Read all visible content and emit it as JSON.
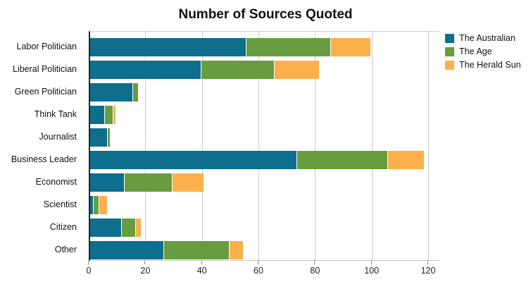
{
  "title": "Number of Sources Quoted",
  "chart_data": {
    "type": "bar",
    "stacked": true,
    "orientation": "horizontal",
    "title": "Number of Sources Quoted",
    "categories": [
      "Labor Politician",
      "Liberal Politician",
      "Green Politician",
      "Think Tank",
      "Journalist",
      "Business Leader",
      "Economist",
      "Scientist",
      "Citizen",
      "Other"
    ],
    "series": [
      {
        "name": "The Australian",
        "color": "#0d6e8d",
        "values": [
          55,
          39,
          15,
          5,
          6,
          73,
          12,
          1,
          11,
          26
        ]
      },
      {
        "name": "The Age",
        "color": "#689c40",
        "values": [
          30,
          26,
          2,
          3,
          1,
          32,
          17,
          2,
          5,
          23
        ]
      },
      {
        "name": "The Herald Sun",
        "color": "#fbb04c",
        "values": [
          14,
          16,
          0,
          1,
          0,
          13,
          11,
          3,
          2,
          5
        ]
      }
    ],
    "x_ticks": [
      0,
      20,
      40,
      60,
      80,
      100,
      120
    ],
    "xlim": [
      0,
      124
    ],
    "grid": true,
    "legend_position": "top-right",
    "xlabel": "",
    "ylabel": ""
  }
}
